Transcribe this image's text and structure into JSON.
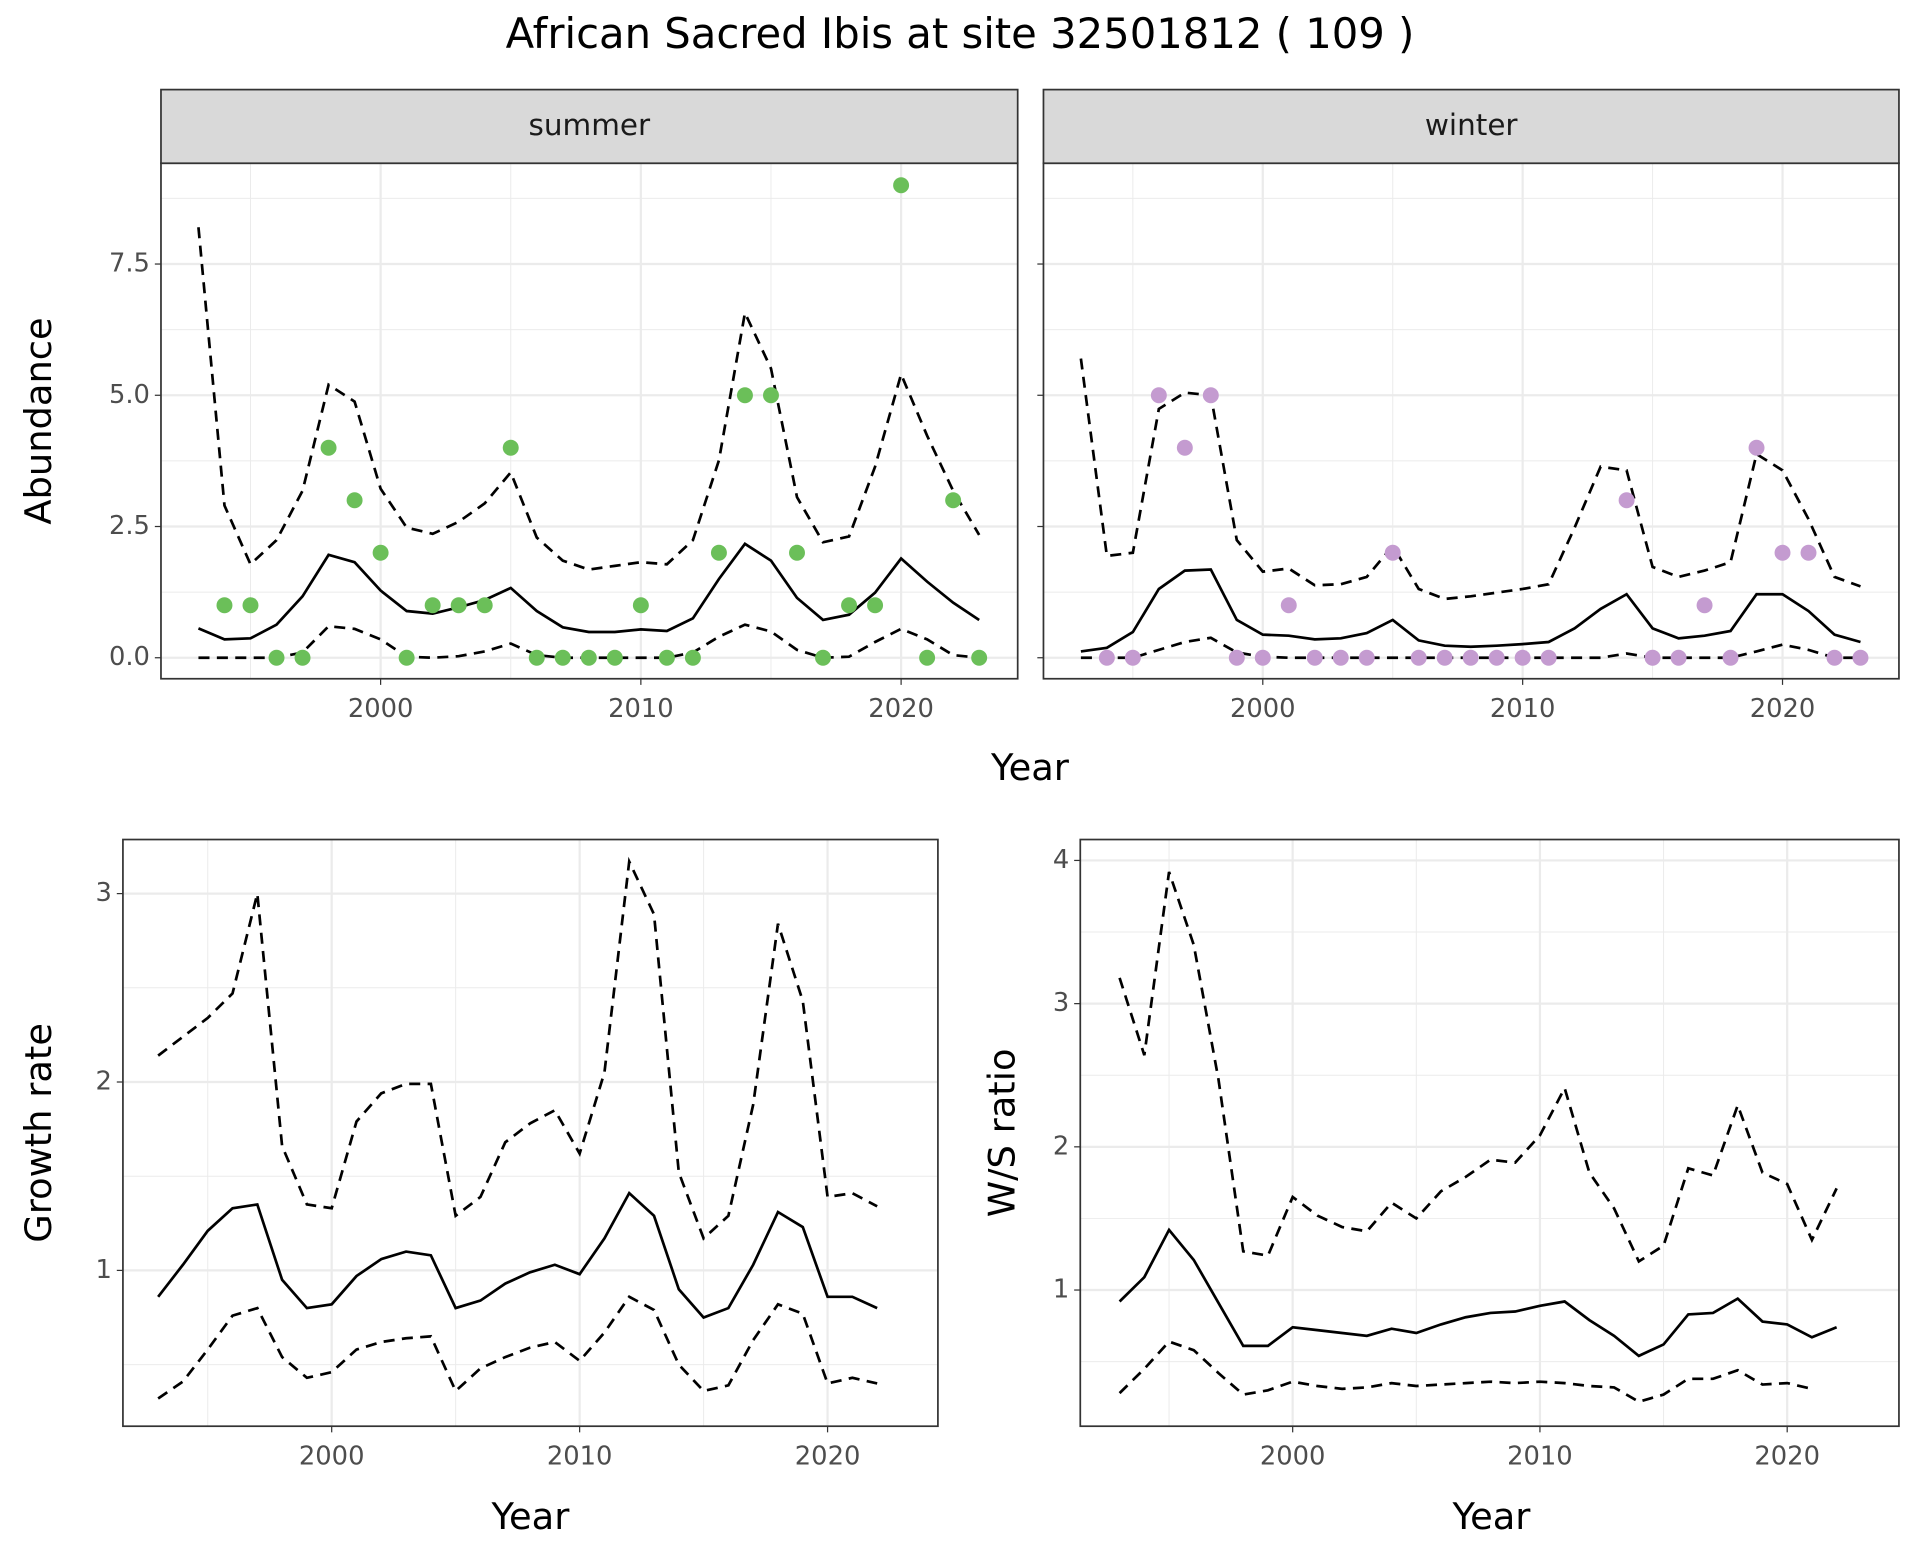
{
  "title": "African Sacred Ibis at site 32501812 ( 109 )",
  "chart_data": [
    {
      "type": "line",
      "strip": "summer",
      "xlabel": "Year",
      "ylabel": "Abundance",
      "x": [
        1993,
        1994,
        1995,
        1996,
        1997,
        1998,
        1999,
        2000,
        2001,
        2002,
        2003,
        2004,
        2005,
        2006,
        2007,
        2008,
        2009,
        2010,
        2011,
        2012,
        2013,
        2014,
        2015,
        2016,
        2017,
        2018,
        2019,
        2020,
        2021,
        2022,
        2023
      ],
      "xlim": [
        1991.56,
        2024.48
      ],
      "ylim": [
        -0.4,
        9.42
      ],
      "xticks": [
        2000,
        2010,
        2020
      ],
      "yticks": [
        {
          "value": 0,
          "label": "0.0"
        },
        2.5,
        {
          "value": 5,
          "label": "5.0"
        },
        7.5
      ],
      "grid": true,
      "series": [
        {
          "type": "line",
          "dash": false,
          "color": "#000000",
          "values": [
            0.56,
            0.35,
            0.37,
            0.63,
            1.17,
            1.96,
            1.82,
            1.28,
            0.89,
            0.84,
            0.96,
            1.1,
            1.33,
            0.89,
            0.58,
            0.49,
            0.49,
            0.54,
            0.51,
            0.75,
            1.5,
            2.17,
            1.85,
            1.14,
            0.72,
            0.82,
            1.24,
            1.89,
            1.45,
            1.05,
            0.72
          ]
        },
        {
          "type": "line",
          "dash": true,
          "color": "#000000",
          "values": [
            8.2,
            2.9,
            1.78,
            2.24,
            3.18,
            5.2,
            4.88,
            3.22,
            2.48,
            2.36,
            2.59,
            2.94,
            3.53,
            2.29,
            1.85,
            1.68,
            1.75,
            1.82,
            1.78,
            2.24,
            3.76,
            6.57,
            5.51,
            3.06,
            2.2,
            2.31,
            3.64,
            5.4,
            4.23,
            3.18,
            2.34
          ]
        },
        {
          "type": "line",
          "dash": true,
          "color": "#000000",
          "values": [
            0,
            0,
            0,
            0,
            0.1,
            0.6,
            0.55,
            0.35,
            0.02,
            0,
            0.03,
            0.12,
            0.27,
            0.05,
            0,
            0,
            0,
            0,
            0,
            0.1,
            0.4,
            0.63,
            0.5,
            0.15,
            0,
            0.02,
            0.3,
            0.55,
            0.35,
            0.05,
            0
          ]
        },
        {
          "type": "scatter",
          "color": "#6bbf59",
          "values": [
            null,
            1,
            1,
            0,
            0,
            4,
            3,
            2,
            0,
            1,
            1,
            1,
            4,
            0,
            0,
            0,
            0,
            1,
            0,
            0,
            2,
            5,
            5,
            2,
            0,
            1,
            1,
            9,
            0,
            3,
            0
          ]
        }
      ]
    },
    {
      "type": "line",
      "strip": "winter",
      "x": [
        1993,
        1994,
        1995,
        1996,
        1997,
        1998,
        1999,
        2000,
        2001,
        2002,
        2003,
        2004,
        2005,
        2006,
        2007,
        2008,
        2009,
        2010,
        2011,
        2012,
        2013,
        2014,
        2015,
        2016,
        2017,
        2018,
        2019,
        2020,
        2021,
        2022,
        2023
      ],
      "xlim": [
        1991.56,
        2024.48
      ],
      "ylim": [
        -0.4,
        9.42
      ],
      "xticks": [
        2000,
        2010,
        2020
      ],
      "yticks": [
        0,
        2.5,
        5,
        7.5
      ],
      "grid": true,
      "series": [
        {
          "type": "line",
          "dash": false,
          "color": "#000000",
          "values": [
            0.12,
            0.19,
            0.49,
            1.31,
            1.66,
            1.68,
            0.72,
            0.44,
            0.42,
            0.35,
            0.37,
            0.47,
            0.72,
            0.33,
            0.23,
            0.21,
            0.23,
            0.26,
            0.3,
            0.56,
            0.93,
            1.21,
            0.56,
            0.37,
            0.42,
            0.51,
            1.21,
            1.21,
            0.89,
            0.44,
            0.3
          ]
        },
        {
          "type": "line",
          "dash": true,
          "color": "#000000",
          "values": [
            5.7,
            1.94,
            2.0,
            4.74,
            5.05,
            5.0,
            2.24,
            1.64,
            1.7,
            1.38,
            1.4,
            1.54,
            2.13,
            1.31,
            1.12,
            1.17,
            1.24,
            1.31,
            1.4,
            2.48,
            3.64,
            3.57,
            1.73,
            1.54,
            1.66,
            1.82,
            3.88,
            3.57,
            2.64,
            1.54,
            1.36
          ]
        },
        {
          "type": "line",
          "dash": true,
          "color": "#000000",
          "values": [
            0,
            0,
            0,
            0.15,
            0.3,
            0.38,
            0.1,
            0.02,
            0,
            0,
            0,
            0,
            0,
            0,
            0,
            0,
            0,
            0,
            0,
            0,
            0,
            0.08,
            0,
            0,
            0,
            0,
            0.12,
            0.25,
            0.15,
            0,
            0
          ]
        },
        {
          "type": "scatter",
          "color": "#c49bd0",
          "values": [
            null,
            0,
            0,
            5,
            4,
            5,
            0,
            0,
            1,
            0,
            0,
            0,
            2,
            0,
            0,
            0,
            0,
            0,
            0,
            null,
            null,
            3,
            0,
            0,
            1,
            0,
            4,
            2,
            2,
            0,
            0
          ]
        }
      ]
    },
    {
      "type": "line",
      "xlabel": "Year",
      "ylabel": "Growth rate",
      "x": [
        1993,
        1994,
        1995,
        1996,
        1997,
        1998,
        1999,
        2000,
        2001,
        2002,
        2003,
        2004,
        2005,
        2006,
        2007,
        2008,
        2009,
        2010,
        2011,
        2012,
        2013,
        2014,
        2015,
        2016,
        2017,
        2018,
        2019,
        2020,
        2021,
        2022
      ],
      "xlim": [
        1991.58,
        2024.45
      ],
      "ylim": [
        0.173,
        3.287
      ],
      "xticks": [
        2000,
        2010,
        2020
      ],
      "yticks": [
        1,
        2,
        3
      ],
      "grid": true,
      "series": [
        {
          "type": "line",
          "dash": false,
          "color": "#000000",
          "values": [
            0.86,
            1.03,
            1.21,
            1.33,
            1.35,
            0.95,
            0.8,
            0.82,
            0.97,
            1.06,
            1.1,
            1.08,
            0.8,
            0.84,
            0.93,
            0.99,
            1.03,
            0.98,
            1.17,
            1.41,
            1.29,
            0.9,
            0.75,
            0.8,
            1.03,
            1.31,
            1.23,
            0.86,
            0.86,
            0.8
          ]
        },
        {
          "type": "line",
          "dash": true,
          "color": "#000000",
          "values": [
            2.14,
            2.24,
            2.34,
            2.47,
            3.0,
            1.66,
            1.35,
            1.33,
            1.79,
            1.94,
            1.99,
            1.99,
            1.29,
            1.39,
            1.68,
            1.78,
            1.85,
            1.62,
            2.05,
            3.17,
            2.89,
            1.52,
            1.17,
            1.29,
            1.88,
            2.84,
            2.43,
            1.39,
            1.41,
            1.34
          ]
        },
        {
          "type": "line",
          "dash": true,
          "color": "#000000",
          "values": [
            0.32,
            0.41,
            0.58,
            0.76,
            0.8,
            0.54,
            0.43,
            0.46,
            0.58,
            0.62,
            0.64,
            0.65,
            0.36,
            0.48,
            0.54,
            0.59,
            0.62,
            0.52,
            0.67,
            0.86,
            0.79,
            0.5,
            0.36,
            0.39,
            0.63,
            0.82,
            0.77,
            0.4,
            0.43,
            0.4
          ]
        }
      ]
    },
    {
      "type": "line",
      "xlabel": "Year",
      "ylabel": "W/S ratio",
      "x": [
        1993,
        1994,
        1995,
        1996,
        1997,
        1998,
        1999,
        2000,
        2001,
        2002,
        2003,
        2004,
        2005,
        2006,
        2007,
        2008,
        2009,
        2010,
        2011,
        2012,
        2013,
        2014,
        2015,
        2016,
        2017,
        2018,
        2019,
        2020,
        2021,
        2022
      ],
      "xlim": [
        1991.41,
        2024.52
      ],
      "ylim": [
        0.049,
        4.146
      ],
      "xticks": [
        2000,
        2010,
        2020
      ],
      "yticks": [
        1,
        2,
        3,
        4
      ],
      "grid": true,
      "series": [
        {
          "type": "line",
          "dash": false,
          "color": "#000000",
          "values": [
            0.92,
            1.09,
            1.42,
            1.21,
            0.91,
            0.61,
            0.61,
            0.74,
            0.72,
            0.7,
            0.68,
            0.73,
            0.7,
            0.76,
            0.81,
            0.84,
            0.85,
            0.89,
            0.92,
            0.79,
            0.68,
            0.54,
            0.62,
            0.83,
            0.84,
            0.94,
            0.78,
            0.76,
            0.67,
            0.74
          ]
        },
        {
          "type": "line",
          "dash": true,
          "color": "#000000",
          "values": [
            3.18,
            2.64,
            3.92,
            3.41,
            2.47,
            1.27,
            1.24,
            1.65,
            1.52,
            1.44,
            1.41,
            1.61,
            1.5,
            1.69,
            1.79,
            1.91,
            1.89,
            2.08,
            2.41,
            1.82,
            1.57,
            1.2,
            1.31,
            1.85,
            1.8,
            2.29,
            1.82,
            1.74,
            1.35,
            1.71
          ]
        },
        {
          "type": "line",
          "dash": true,
          "color": "#000000",
          "values": [
            0.28,
            0.45,
            0.64,
            0.58,
            0.42,
            0.27,
            0.3,
            0.36,
            0.33,
            0.31,
            0.32,
            0.35,
            0.33,
            0.34,
            0.35,
            0.36,
            0.35,
            0.36,
            0.35,
            0.33,
            0.32,
            0.22,
            0.27,
            0.38,
            0.38,
            0.44,
            0.34,
            0.35,
            0.31,
            null
          ]
        }
      ]
    }
  ]
}
